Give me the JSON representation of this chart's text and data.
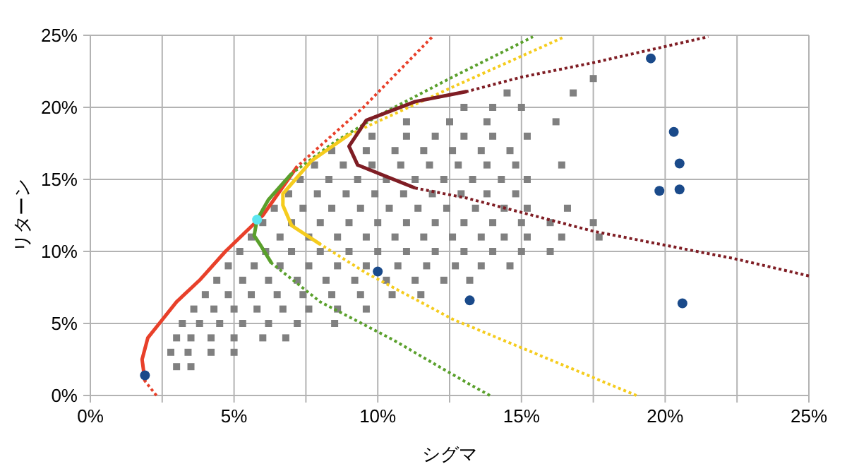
{
  "chart_data": {
    "type": "scatter",
    "xlabel": "シグマ",
    "ylabel": "リターン",
    "xlim": [
      0,
      25
    ],
    "ylim": [
      0,
      25
    ],
    "xticks": [
      {
        "value": 0,
        "label": "0%"
      },
      {
        "value": 2.5,
        "label": null
      },
      {
        "value": 5,
        "label": "5%"
      },
      {
        "value": 7.5,
        "label": null
      },
      {
        "value": 10,
        "label": "10%"
      },
      {
        "value": 12.5,
        "label": null
      },
      {
        "value": 15,
        "label": "15%"
      },
      {
        "value": 17.5,
        "label": null
      },
      {
        "value": 20,
        "label": "20%"
      },
      {
        "value": 22.5,
        "label": null
      },
      {
        "value": 25,
        "label": "25%"
      }
    ],
    "yticks": [
      {
        "value": 0,
        "label": "0%"
      },
      {
        "value": 5,
        "label": "5%"
      },
      {
        "value": 10,
        "label": "10%"
      },
      {
        "value": 15,
        "label": "15%"
      },
      {
        "value": 20,
        "label": "20%"
      },
      {
        "value": 25,
        "label": "25%"
      }
    ],
    "grid": true,
    "series": [
      {
        "marker": "square",
        "color": "#808080",
        "x": [
          3.0,
          3.5,
          2.8,
          3.4,
          4.2,
          5.0,
          3.0,
          3.5,
          4.2,
          5.0,
          6.0,
          6.8,
          3.2,
          3.8,
          4.5,
          5.3,
          6.2,
          7.2,
          8.5,
          3.6,
          4.3,
          5.0,
          5.8,
          6.7,
          7.6,
          8.6,
          9.6,
          4.0,
          4.8,
          5.6,
          6.5,
          7.4,
          8.4,
          9.4,
          10.5,
          11.5,
          4.4,
          5.3,
          6.2,
          7.2,
          8.2,
          9.2,
          10.3,
          11.3,
          12.3,
          13.2,
          4.8,
          5.7,
          6.6,
          7.6,
          8.6,
          9.6,
          10.7,
          11.7,
          12.7,
          13.6,
          14.6,
          5.2,
          6.1,
          7.0,
          8.0,
          9.0,
          10.0,
          11.0,
          12.0,
          13.0,
          14.0,
          15.0,
          16.0,
          5.6,
          6.6,
          7.6,
          8.6,
          9.6,
          10.6,
          11.6,
          12.6,
          13.6,
          14.4,
          15.2,
          16.4,
          17.7,
          6.0,
          7.0,
          8.0,
          9.0,
          10.0,
          11.0,
          12.0,
          13.0,
          14.0,
          15.0,
          16.0,
          17.5,
          6.4,
          7.4,
          8.4,
          9.4,
          10.4,
          11.4,
          12.4,
          13.4,
          14.4,
          15.2,
          16.6,
          6.9,
          7.9,
          8.9,
          9.9,
          10.9,
          11.9,
          12.9,
          13.8,
          14.8,
          7.3,
          8.3,
          9.3,
          10.3,
          11.3,
          12.3,
          13.3,
          14.3,
          15.2,
          7.8,
          8.8,
          9.8,
          10.8,
          11.8,
          12.8,
          13.8,
          14.8,
          16.4,
          8.4,
          9.6,
          10.6,
          11.6,
          12.6,
          13.6,
          14.6,
          9.8,
          11.0,
          12.0,
          13.0,
          14.0,
          15.2,
          11.0,
          12.5,
          13.8,
          16.2,
          13.0,
          14.0,
          15.0,
          14.5,
          16.8,
          17.5
        ],
        "values": [
          2,
          2,
          3,
          3,
          3,
          3,
          4,
          4,
          4,
          4,
          4,
          4,
          5,
          5,
          5,
          5,
          5,
          5,
          5,
          6,
          6,
          6,
          6,
          6,
          6,
          6,
          6,
          7,
          7,
          7,
          7,
          7,
          7,
          7,
          7,
          7,
          8,
          8,
          8,
          8,
          8,
          8,
          8,
          8,
          8,
          8,
          9,
          9,
          9,
          9,
          9,
          9,
          9,
          9,
          9,
          9,
          9,
          10,
          10,
          10,
          10,
          10,
          10,
          10,
          10,
          10,
          10,
          10,
          10,
          11,
          11,
          11,
          11,
          11,
          11,
          11,
          11,
          11,
          11,
          11,
          11,
          11,
          12,
          12,
          12,
          12,
          12,
          12,
          12,
          12,
          12,
          12,
          12,
          12,
          13,
          13,
          13,
          13,
          13,
          13,
          13,
          13,
          13,
          13,
          13,
          14,
          14,
          14,
          14,
          14,
          14,
          14,
          14,
          14,
          15,
          15,
          15,
          15,
          15,
          15,
          15,
          15,
          15,
          16,
          16,
          16,
          16,
          16,
          16,
          16,
          16,
          16,
          17,
          17,
          17,
          17,
          17,
          17,
          17,
          18,
          18,
          18,
          18,
          18,
          18,
          19,
          19,
          19,
          19,
          20,
          20,
          20,
          21,
          21,
          22
        ]
      },
      {
        "type": "line",
        "line_style": "dotted",
        "color": "#e8402a",
        "x": [
          2.3,
          1.9,
          1.8,
          2.0,
          2.4,
          3.0,
          3.8,
          4.7,
          6.0,
          7.2,
          9.5,
          11.9
        ],
        "values": [
          0,
          1,
          2.5,
          4,
          5,
          6.5,
          8,
          10,
          12.5,
          15.9,
          20,
          24.9
        ]
      },
      {
        "type": "line",
        "line_style": "solid",
        "color": "#e8402a",
        "x": [
          1.9,
          1.8,
          2.0,
          2.4,
          3.0,
          3.8,
          4.7,
          6.0,
          7.2
        ],
        "values": [
          1,
          2.5,
          4,
          5,
          6.5,
          8,
          10,
          12.5,
          15.9
        ]
      },
      {
        "type": "line",
        "line_style": "dotted",
        "color": "#5aa02c",
        "x": [
          13.9,
          13.0,
          10.5,
          8.0,
          6.3,
          5.9,
          5.7,
          5.8,
          6.2,
          7.0,
          8.5,
          10.0,
          12.6,
          15.4
        ],
        "values": [
          0,
          1,
          3.9,
          6.5,
          9.2,
          10.5,
          11.1,
          12.2,
          13.6,
          15.4,
          17.6,
          19.4,
          22.1,
          24.9
        ]
      },
      {
        "type": "line",
        "line_style": "solid",
        "color": "#5aa02c",
        "x": [
          6.3,
          5.9,
          5.7,
          5.8,
          6.2,
          7.0
        ],
        "values": [
          9.2,
          10.5,
          11.1,
          12.2,
          13.6,
          15.4
        ]
      },
      {
        "type": "line",
        "line_style": "dotted",
        "color": "#f5cc1e",
        "x": [
          19.0,
          12.6,
          9.6,
          8.0,
          7.0,
          6.7,
          6.7,
          7.7,
          9.0,
          12.6,
          16.5
        ],
        "values": [
          0,
          5.3,
          8.5,
          10.5,
          11.8,
          13.2,
          14.0,
          16.3,
          18.1,
          21.4,
          24.9
        ]
      },
      {
        "type": "line",
        "line_style": "solid",
        "color": "#f5cc1e",
        "x": [
          8.0,
          7.0,
          6.7,
          6.7,
          7.7,
          9.0
        ],
        "values": [
          10.5,
          11.8,
          13.2,
          14.0,
          16.3,
          18.1
        ]
      },
      {
        "type": "line",
        "line_style": "dotted",
        "color": "#7f1d24",
        "x": [
          25,
          22.4,
          17.5,
          13.1,
          11.3,
          9.3,
          9.0,
          9.6,
          11.3,
          13.1,
          15.0,
          17.5,
          21.5
        ],
        "values": [
          8.3,
          9.5,
          11.4,
          13.7,
          14.4,
          16.0,
          17.3,
          19.1,
          20.4,
          21.1,
          22.1,
          23.1,
          24.9
        ]
      },
      {
        "type": "line",
        "line_style": "solid",
        "color": "#7f1d24",
        "x": [
          11.3,
          9.3,
          9.0,
          9.6,
          11.3,
          13.1
        ],
        "values": [
          14.4,
          16.0,
          17.3,
          19.1,
          20.4,
          21.1
        ]
      },
      {
        "marker": "circle",
        "color": "#1a4a8a",
        "x": [
          1.9,
          10.0,
          13.2,
          20.6,
          19.5,
          20.3,
          20.5,
          19.8,
          20.5
        ],
        "values": [
          1.4,
          8.6,
          6.6,
          6.4,
          23.4,
          18.3,
          16.1,
          14.2,
          14.3
        ]
      },
      {
        "marker": "circle",
        "color": "#5ce6f0",
        "x": [
          5.8
        ],
        "values": [
          12.2
        ]
      }
    ]
  }
}
